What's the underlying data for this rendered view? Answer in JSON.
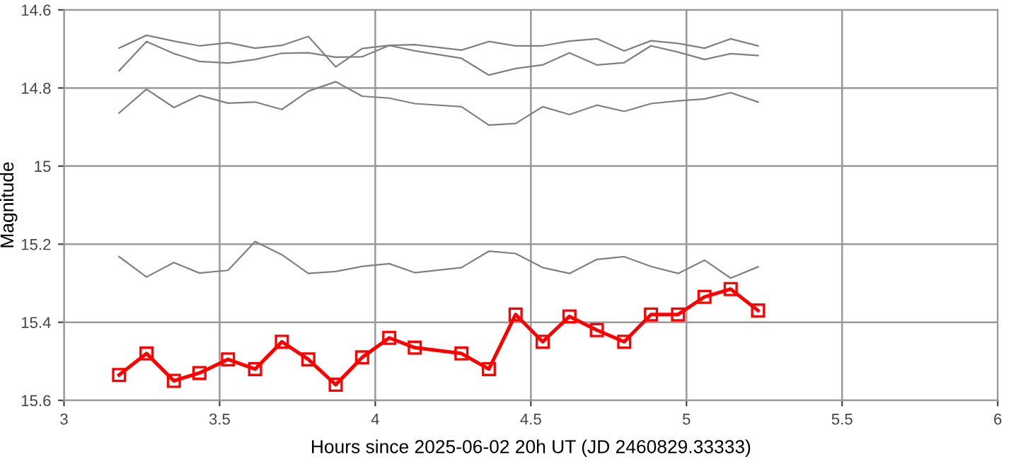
{
  "chart_data": {
    "type": "line",
    "xlabel": "Hours since 2025-06-02 20h UT (JD 2460829.33333)",
    "ylabel": "Magnitude",
    "x": [
      3.177,
      3.265,
      3.353,
      3.435,
      3.527,
      3.614,
      3.7,
      3.785,
      3.873,
      3.958,
      4.045,
      4.127,
      4.277,
      4.365,
      4.451,
      4.538,
      4.624,
      4.712,
      4.8,
      4.886,
      4.973,
      5.058,
      5.142,
      5.23
    ],
    "series": [
      {
        "color": "#808080",
        "marker": "none",
        "values": [
          14.698,
          14.665,
          14.68,
          14.692,
          14.684,
          14.698,
          14.691,
          14.668,
          14.746,
          14.699,
          14.691,
          14.689,
          14.703,
          14.681,
          14.692,
          14.692,
          14.68,
          14.674,
          14.705,
          14.679,
          14.686,
          14.698,
          14.674,
          14.692
        ]
      },
      {
        "color": "#808080",
        "marker": "none",
        "values": [
          14.756,
          14.681,
          14.712,
          14.732,
          14.736,
          14.727,
          14.711,
          14.71,
          14.721,
          14.72,
          14.691,
          14.705,
          14.724,
          14.767,
          14.75,
          14.741,
          14.71,
          14.741,
          14.735,
          14.692,
          14.708,
          14.727,
          14.712,
          14.717
        ]
      },
      {
        "color": "#808080",
        "marker": "none",
        "values": [
          14.864,
          14.803,
          14.85,
          14.819,
          14.839,
          14.836,
          14.855,
          14.808,
          14.784,
          14.821,
          14.826,
          14.84,
          14.848,
          14.895,
          14.891,
          14.848,
          14.868,
          14.844,
          14.86,
          14.84,
          14.833,
          14.828,
          14.812,
          14.836
        ]
      },
      {
        "color": "#808080",
        "marker": "none",
        "values": [
          15.232,
          15.284,
          15.247,
          15.274,
          15.267,
          15.193,
          15.227,
          15.275,
          15.27,
          15.257,
          15.25,
          15.273,
          15.26,
          15.218,
          15.224,
          15.26,
          15.275,
          15.239,
          15.232,
          15.257,
          15.275,
          15.241,
          15.287,
          15.258
        ]
      },
      {
        "color": "#ff0000",
        "marker": "square",
        "values": [
          15.535,
          15.48,
          15.55,
          15.53,
          15.495,
          15.52,
          15.45,
          15.495,
          15.56,
          15.49,
          15.44,
          15.465,
          15.48,
          15.52,
          15.38,
          15.45,
          15.385,
          15.42,
          15.45,
          15.38,
          15.38,
          15.335,
          15.315,
          15.37
        ]
      }
    ],
    "xlim": [
      3,
      6
    ],
    "xticks": [
      3,
      3.5,
      4,
      4.5,
      5,
      5.5,
      6
    ],
    "ylim": [
      15.6,
      14.6
    ],
    "yticks": [
      14.6,
      14.8,
      15,
      15.2,
      15.4,
      15.6
    ],
    "grid": true
  }
}
